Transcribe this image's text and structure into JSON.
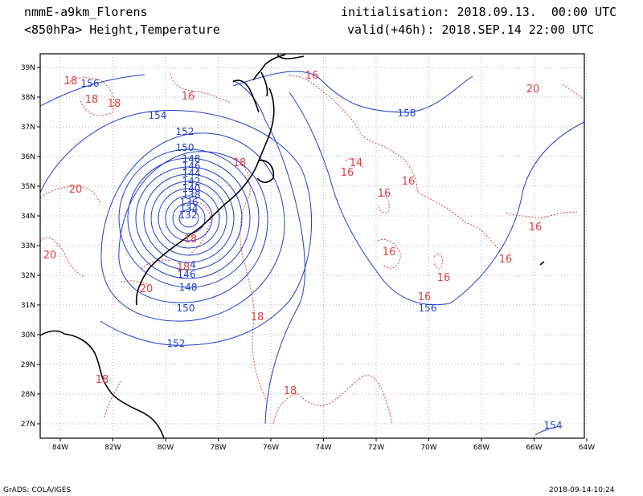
{
  "header": {
    "model": "nmmE-a9km_Florens",
    "level_fields": "<850hPa> Height,Temperature",
    "init": "initialisation: 2018.09.13.  00:00 UTC",
    "valid": "valid(+46h): 2018.SEP.14 22:00 UTC"
  },
  "footer": {
    "software": "GrADS: COLA/IGES",
    "timestamp": "2018-09-14-10:24"
  },
  "colors": {
    "height": "#1f3fc8",
    "temperature": "#e04040",
    "coast": "#000000",
    "grid": "#9a9a9a"
  },
  "axes": {
    "lon_labels": [
      "84W",
      "82W",
      "80W",
      "78W",
      "76W",
      "74W",
      "72W",
      "70W",
      "68W",
      "66W",
      "64W"
    ],
    "lat_labels": [
      "27N",
      "28N",
      "29N",
      "30N",
      "31N",
      "32N",
      "33N",
      "34N",
      "35N",
      "36N",
      "37N",
      "38N",
      "39N"
    ]
  },
  "height_labels": [
    "156",
    "154",
    "152",
    "150",
    "148",
    "146",
    "144",
    "142",
    "140",
    "138",
    "136",
    "134",
    "132",
    "4",
    "146",
    "148",
    "150",
    "152",
    "158",
    "156",
    "154"
  ],
  "temp_labels": [
    "18",
    "18",
    "18",
    "16",
    "16",
    "14",
    "20",
    "20",
    "18",
    "18",
    "18",
    "16",
    "16",
    "16",
    "16",
    "16",
    "16",
    "16",
    "16",
    "20",
    "18",
    "20",
    "18",
    "18"
  ]
}
